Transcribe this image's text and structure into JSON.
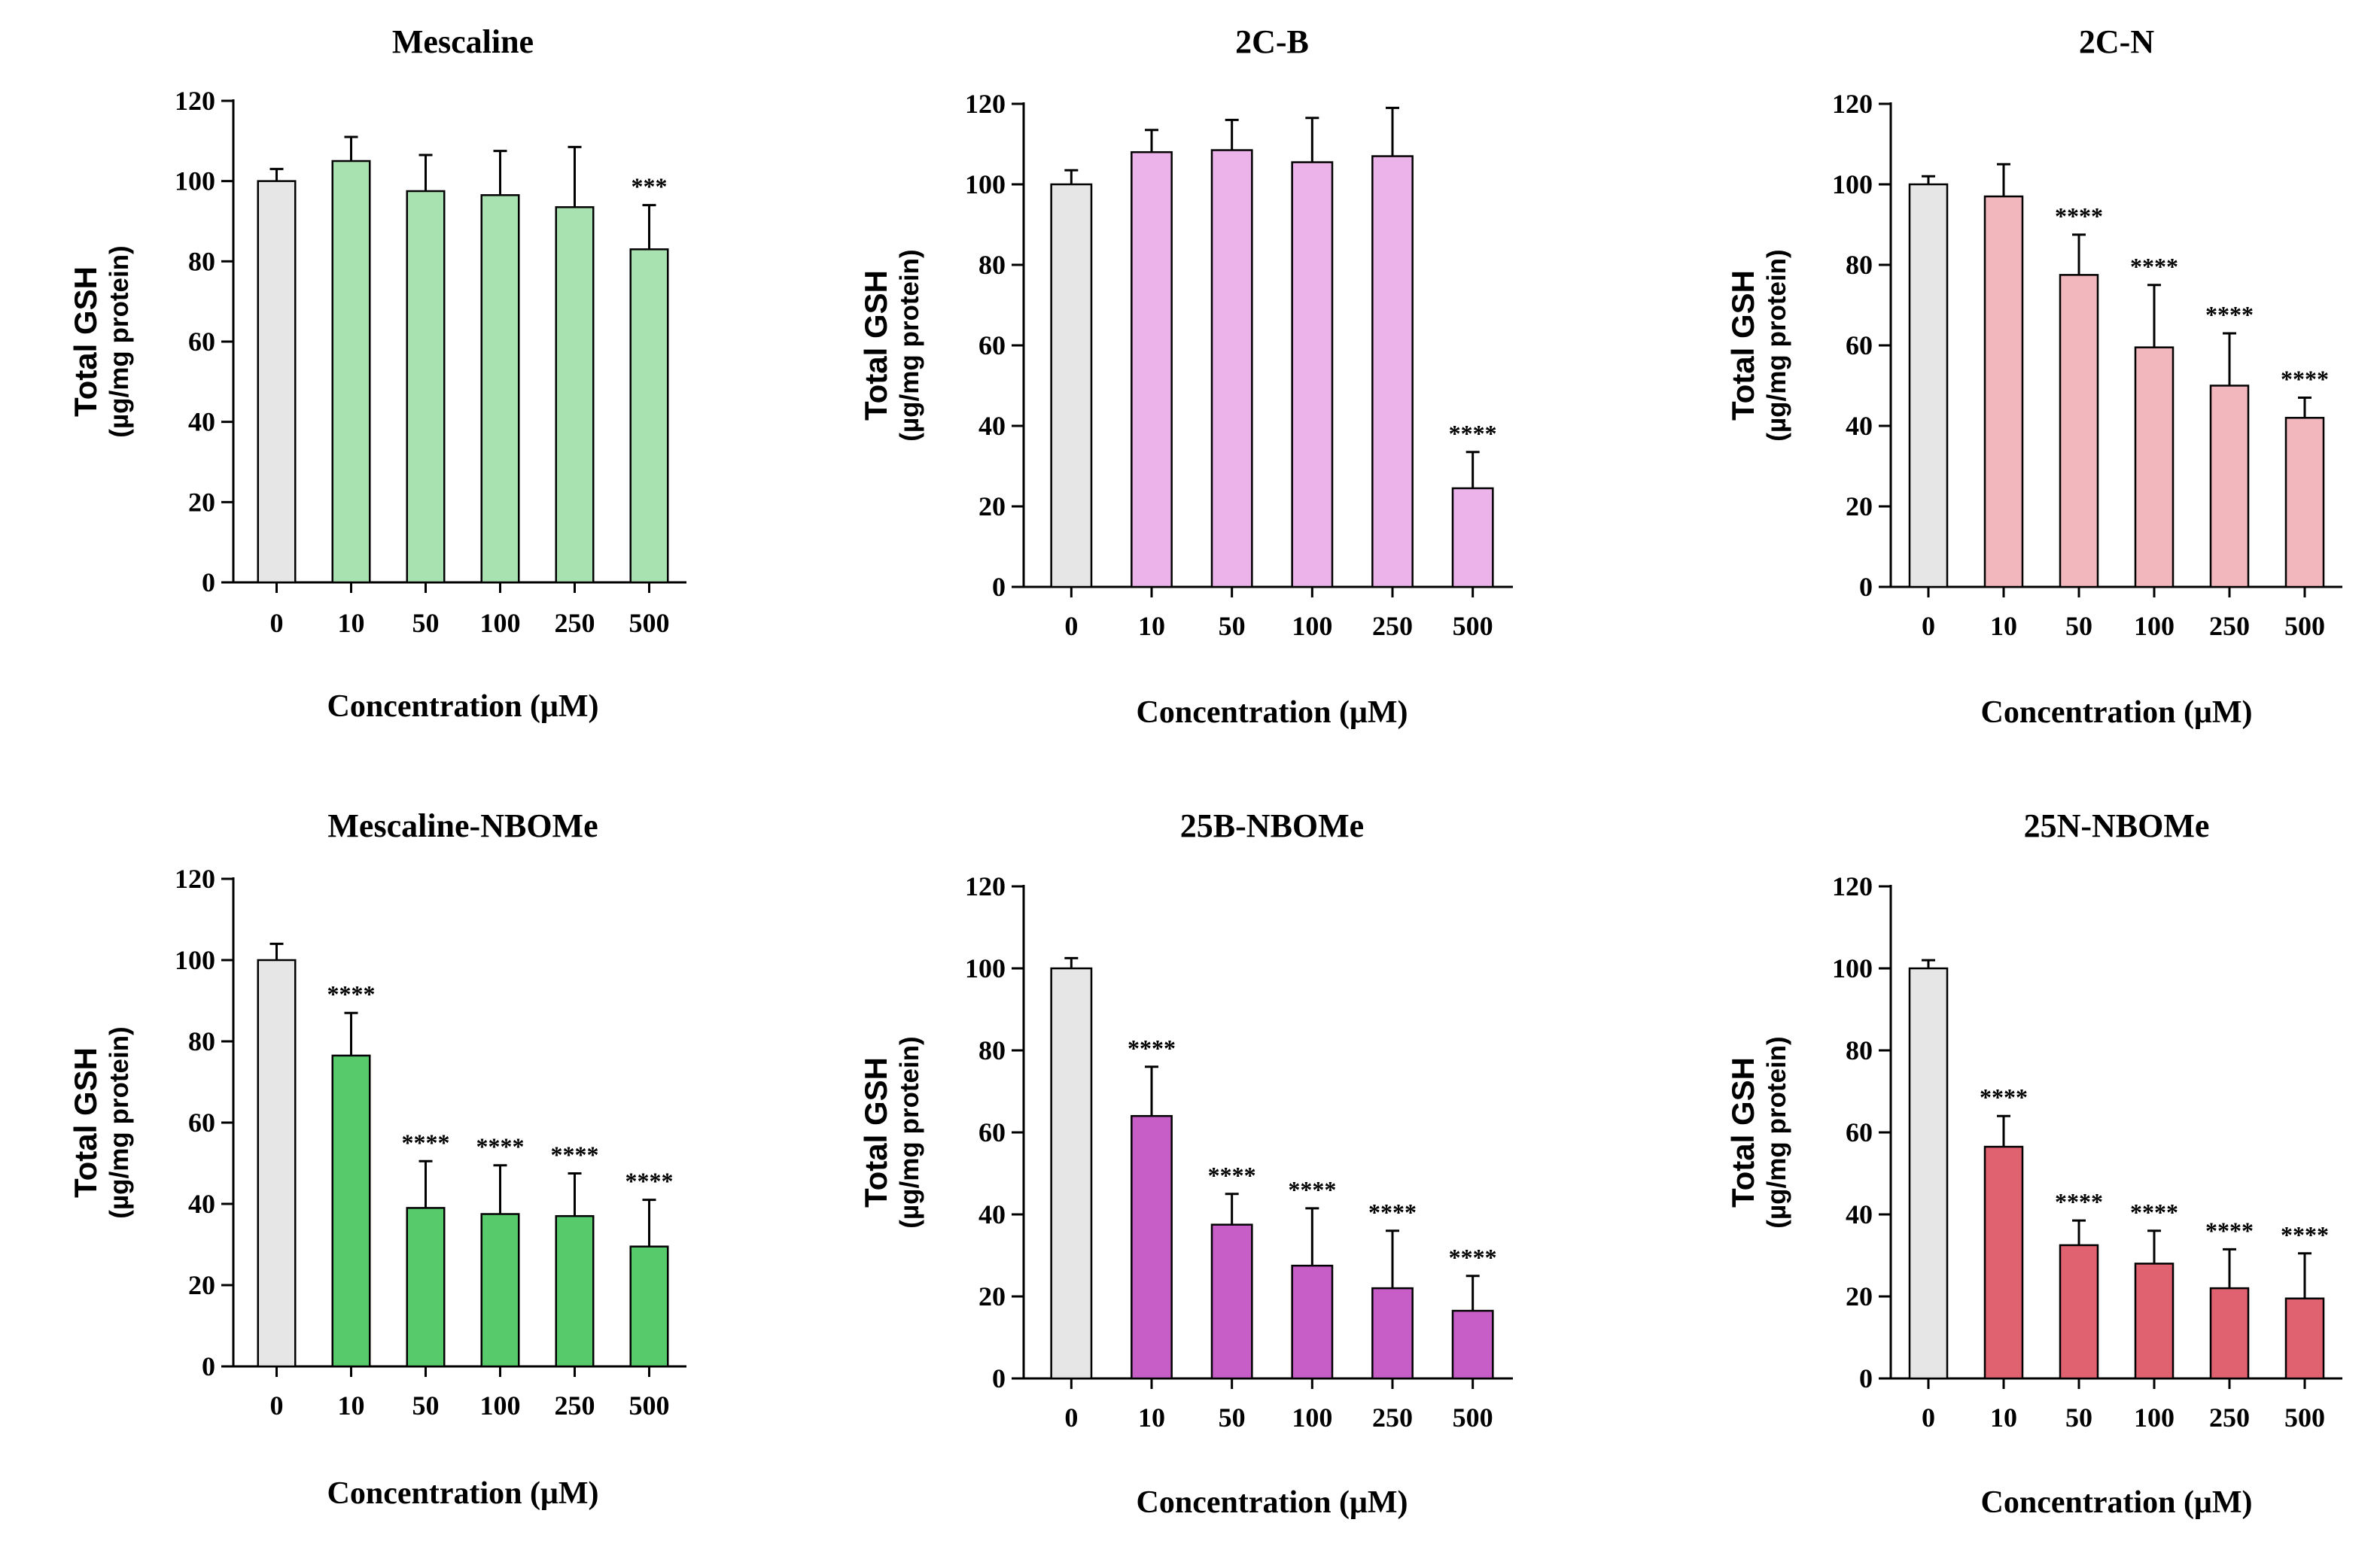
{
  "colors": {
    "control": "#e6e6e6",
    "mescaline": "#a8e2b1",
    "2cb": "#ebb3e9",
    "2cn": "#f2b6bd",
    "mescaline_nbome": "#57ca6b",
    "25b_nbome": "#c75ec8",
    "25n_nbome": "#e0616f",
    "axis": "#000000"
  },
  "chart_data": [
    {
      "type": "bar",
      "title": "Mescaline",
      "ylabel_main": "Total GSH",
      "ylabel_sub": "(µg/mg protein)",
      "xlabel": "Concentration (μM)",
      "categories": [
        "0",
        "10",
        "50",
        "100",
        "250",
        "500"
      ],
      "values": [
        100,
        105,
        97.5,
        96.5,
        93.5,
        83
      ],
      "errors": [
        3,
        6,
        9,
        11,
        15,
        11
      ],
      "significance": [
        "",
        "",
        "",
        "",
        "",
        "***"
      ],
      "bar_colors": [
        "control",
        "mescaline",
        "mescaline",
        "mescaline",
        "mescaline",
        "mescaline"
      ],
      "ylim": [
        0,
        120
      ],
      "yticks": [
        0,
        20,
        40,
        60,
        80,
        100,
        120
      ],
      "grid": false
    },
    {
      "type": "bar",
      "title": "2C-B",
      "ylabel_main": "Total GSH",
      "ylabel_sub": "(µg/mg protein)",
      "xlabel": "Concentration (μM)",
      "categories": [
        "0",
        "10",
        "50",
        "100",
        "250",
        "500"
      ],
      "values": [
        100,
        108,
        108.5,
        105.5,
        107,
        24.5
      ],
      "errors": [
        3.5,
        5.5,
        7.5,
        11,
        12,
        9
      ],
      "significance": [
        "",
        "",
        "",
        "",
        "",
        "****"
      ],
      "bar_colors": [
        "control",
        "2cb",
        "2cb",
        "2cb",
        "2cb",
        "2cb"
      ],
      "ylim": [
        0,
        120
      ],
      "yticks": [
        0,
        20,
        40,
        60,
        80,
        100,
        120
      ],
      "grid": false
    },
    {
      "type": "bar",
      "title": "2C-N",
      "ylabel_main": "Total GSH",
      "ylabel_sub": "(µg/mg protein)",
      "xlabel": "Concentration (μM)",
      "categories": [
        "0",
        "10",
        "50",
        "100",
        "250",
        "500"
      ],
      "values": [
        100,
        97,
        77.5,
        59.5,
        50,
        42
      ],
      "errors": [
        2,
        8,
        10,
        15.5,
        13,
        5
      ],
      "significance": [
        "",
        "",
        "****",
        "****",
        "****",
        "****"
      ],
      "bar_colors": [
        "control",
        "2cn",
        "2cn",
        "2cn",
        "2cn",
        "2cn"
      ],
      "ylim": [
        0,
        120
      ],
      "yticks": [
        0,
        20,
        40,
        60,
        80,
        100,
        120
      ],
      "grid": false
    },
    {
      "type": "bar",
      "title": "Mescaline-NBOMe",
      "ylabel_main": "Total GSH",
      "ylabel_sub": "(µg/mg protein)",
      "xlabel": "Concentration (μM)",
      "categories": [
        "0",
        "10",
        "50",
        "100",
        "250",
        "500"
      ],
      "values": [
        100,
        76.5,
        39,
        37.5,
        37,
        29.5
      ],
      "errors": [
        4,
        10.5,
        11.5,
        12,
        10.5,
        11.5
      ],
      "significance": [
        "",
        "****",
        "****",
        "****",
        "****",
        "****"
      ],
      "bar_colors": [
        "control",
        "mescaline_nbome",
        "mescaline_nbome",
        "mescaline_nbome",
        "mescaline_nbome",
        "mescaline_nbome"
      ],
      "ylim": [
        0,
        120
      ],
      "yticks": [
        0,
        20,
        40,
        60,
        80,
        100,
        120
      ],
      "grid": false
    },
    {
      "type": "bar",
      "title": "25B-NBOMe",
      "ylabel_main": "Total GSH",
      "ylabel_sub": "(µg/mg protein)",
      "xlabel": "Concentration (μM)",
      "categories": [
        "0",
        "10",
        "50",
        "100",
        "250",
        "500"
      ],
      "values": [
        100,
        64,
        37.5,
        27.5,
        22,
        16.5
      ],
      "errors": [
        2.5,
        12,
        7.5,
        14,
        14,
        8.5
      ],
      "significance": [
        "",
        "****",
        "****",
        "****",
        "****",
        "****"
      ],
      "bar_colors": [
        "control",
        "25b_nbome",
        "25b_nbome",
        "25b_nbome",
        "25b_nbome",
        "25b_nbome"
      ],
      "ylim": [
        0,
        120
      ],
      "yticks": [
        0,
        20,
        40,
        60,
        80,
        100,
        120
      ],
      "grid": false
    },
    {
      "type": "bar",
      "title": "25N-NBOMe",
      "ylabel_main": "Total GSH",
      "ylabel_sub": "(µg/mg protein)",
      "xlabel": "Concentration (μM)",
      "categories": [
        "0",
        "10",
        "50",
        "100",
        "250",
        "500"
      ],
      "values": [
        100,
        56.5,
        32.5,
        28,
        22,
        19.5
      ],
      "errors": [
        2,
        7.5,
        6,
        8,
        9.5,
        11
      ],
      "significance": [
        "",
        "****",
        "****",
        "****",
        "****",
        "****"
      ],
      "bar_colors": [
        "control",
        "25n_nbome",
        "25n_nbome",
        "25n_nbome",
        "25n_nbome",
        "25n_nbome"
      ],
      "ylim": [
        0,
        120
      ],
      "yticks": [
        0,
        20,
        40,
        60,
        80,
        100,
        120
      ],
      "grid": false
    }
  ]
}
